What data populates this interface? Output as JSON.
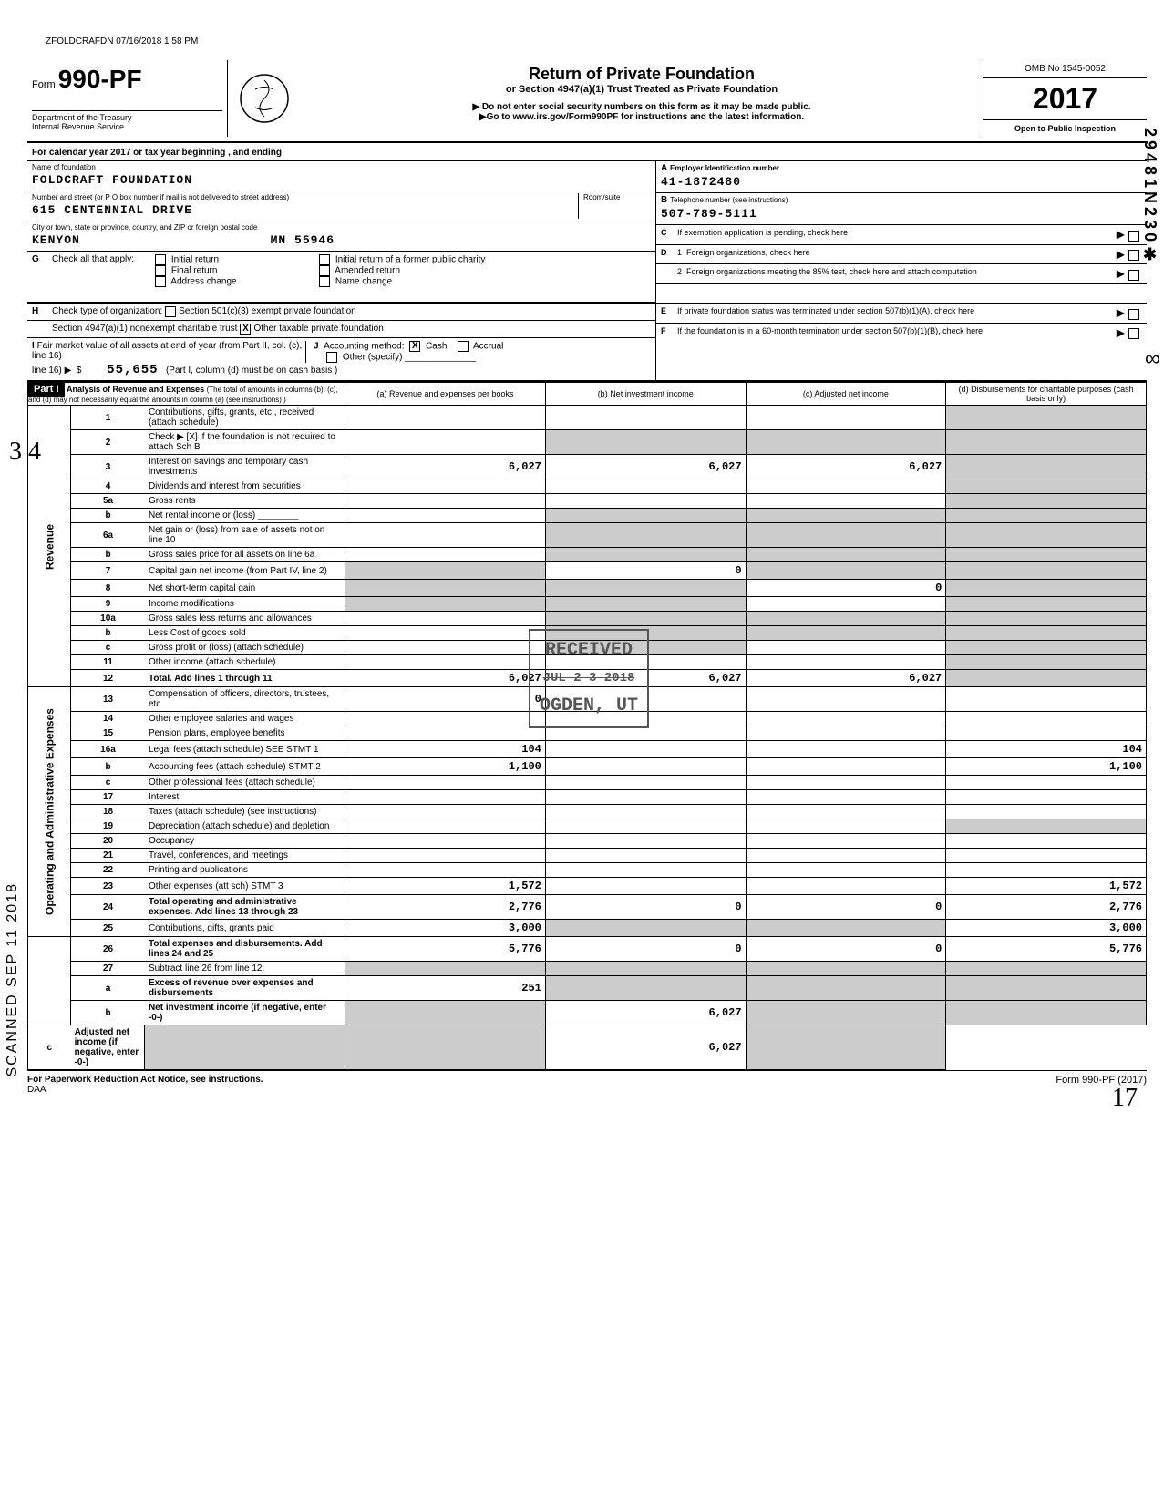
{
  "top_stamp": "ZFOLDCRAFDN 07/16/2018 1 58 PM",
  "form": {
    "prefix": "Form",
    "number": "990-PF",
    "dept1": "Department of the Treasury",
    "dept2": "Internal Revenue Service"
  },
  "title": {
    "main": "Return of Private Foundation",
    "sub": "or Section 4947(a)(1) Trust Treated as Private Foundation",
    "note1": "▶ Do not enter social security numbers on this form as it may be made public.",
    "note2": "▶Go to www.irs.gov/Form990PF for instructions and the latest information."
  },
  "omb": {
    "no": "OMB No 1545-0052",
    "year": "2017",
    "inspection": "Open to Public Inspection"
  },
  "calendar_row": "For calendar year 2017 or tax year beginning                         , and ending",
  "foundation": {
    "name_label": "Name of foundation",
    "name": "FOLDCRAFT FOUNDATION",
    "street_label": "Number and street (or P O  box number if mail is not delivered to street address)",
    "room_label": "Room/suite",
    "street": "615 CENTENNIAL DRIVE",
    "city_label": "City or town, state or province, country, and ZIP or foreign postal code",
    "city": "KENYON",
    "state_zip": "MN  55946"
  },
  "right_info": {
    "a_label": "Employer Identification number",
    "a_value": "41-1872480",
    "b_label": "Telephone number (see instructions)",
    "b_value": "507-789-5111",
    "c_label": "If exemption application is pending, check here",
    "d1_label": "Foreign organizations, check here",
    "d2_label": "Foreign organizations meeting the 85% test, check here and attach computation",
    "e_label": "If private foundation status was terminated under section 507(b)(1)(A), check here",
    "f_label": "If the foundation is in a 60-month termination under section 507(b)(1)(B), check here"
  },
  "section_g": {
    "prefix": "G",
    "label": "Check all that apply:",
    "opts": [
      "Initial return",
      "Final return",
      "Address change",
      "Initial return of a former public charity",
      "Amended return",
      "Name change"
    ]
  },
  "section_h": {
    "prefix": "H",
    "label": "Check type of organization:",
    "opt1": "Section 501(c)(3) exempt private foundation",
    "opt2": "Section 4947(a)(1) nonexempt charitable trust",
    "opt3": "Other taxable private foundation"
  },
  "section_i": {
    "prefix": "I",
    "label": "Fair market value of all assets at end of year (from Part II, col. (c), line 16)",
    "value": "55,655",
    "j_label": "Accounting method:",
    "j_cash": "Cash",
    "j_accrual": "Accrual",
    "j_other": "Other (specify)",
    "j_note": "(Part I, column (d) must be on cash basis )"
  },
  "part1": {
    "header_label": "Part I",
    "header_title": "Analysis of Revenue and Expenses",
    "header_sub": "(The total of amounts in columns (b), (c), and (d) may not necessarily equal the amounts in column (a) (see instructions) )",
    "col_a": "(a) Revenue and expenses per books",
    "col_b": "(b) Net investment income",
    "col_c": "(c) Adjusted net income",
    "col_d": "(d) Disbursements for charitable purposes (cash basis only)"
  },
  "rows": [
    {
      "ln": "1",
      "desc": "Contributions, gifts, grants, etc , received (attach schedule)",
      "a": "",
      "b": "",
      "c": "",
      "d": "",
      "d_shaded": true
    },
    {
      "ln": "2",
      "desc": "Check ▶  [X]  if the foundation is not required to attach Sch B",
      "a": "",
      "b": "",
      "c": "",
      "d": "",
      "d_shaded": true,
      "all_shaded_bcd": true
    },
    {
      "ln": "3",
      "desc": "Interest on savings and temporary cash investments",
      "a": "6,027",
      "b": "6,027",
      "c": "6,027",
      "d": "",
      "d_shaded": true
    },
    {
      "ln": "4",
      "desc": "Dividends and interest from securities",
      "a": "",
      "b": "",
      "c": "",
      "d": "",
      "d_shaded": true
    },
    {
      "ln": "5a",
      "desc": "Gross rents",
      "a": "",
      "b": "",
      "c": "",
      "d": "",
      "d_shaded": true
    },
    {
      "ln": "b",
      "desc": "Net rental income or (loss) ________",
      "a": "",
      "b": "",
      "c": "",
      "d": "",
      "d_shaded": true,
      "bcd_shaded": true
    },
    {
      "ln": "6a",
      "desc": "Net gain or (loss) from sale of assets not on line 10",
      "a": "",
      "b": "",
      "c": "",
      "d": "",
      "d_shaded": true,
      "bc_shaded": true
    },
    {
      "ln": "b",
      "desc": "Gross sales price for all assets on line 6a",
      "a": "",
      "b": "",
      "c": "",
      "d": "",
      "d_shaded": true,
      "bcd_shaded": true
    },
    {
      "ln": "7",
      "desc": "Capital gain net income (from Part IV, line 2)",
      "a": "",
      "b": "0",
      "c": "",
      "d": "",
      "d_shaded": true,
      "a_shaded": true,
      "c_shaded": true
    },
    {
      "ln": "8",
      "desc": "Net short-term capital gain",
      "a": "",
      "b": "",
      "c": "0",
      "d": "",
      "d_shaded": true,
      "a_shaded": true,
      "b_shaded": true
    },
    {
      "ln": "9",
      "desc": "Income modifications",
      "a": "",
      "b": "",
      "c": "",
      "d": "",
      "d_shaded": true,
      "a_shaded": true,
      "b_shaded": true
    },
    {
      "ln": "10a",
      "desc": "Gross sales less returns and allowances",
      "a": "",
      "b": "",
      "c": "",
      "d": "",
      "d_shaded": true,
      "bcd_shaded": true
    },
    {
      "ln": "b",
      "desc": "Less  Cost of goods sold",
      "a": "",
      "b": "",
      "c": "",
      "d": "",
      "d_shaded": true,
      "bcd_shaded": true
    },
    {
      "ln": "c",
      "desc": "Gross profit or (loss) (attach schedule)",
      "a": "",
      "b": "",
      "c": "",
      "d": "",
      "d_shaded": true,
      "b_shaded": true
    },
    {
      "ln": "11",
      "desc": "Other income (attach schedule)",
      "a": "",
      "b": "",
      "c": "",
      "d": "",
      "d_shaded": true
    },
    {
      "ln": "12",
      "desc": "Total. Add lines 1 through 11",
      "a": "6,027",
      "b": "6,027",
      "c": "6,027",
      "d": "",
      "d_shaded": true,
      "bold": true
    },
    {
      "ln": "13",
      "desc": "Compensation of officers, directors, trustees, etc",
      "a": "0",
      "b": "",
      "c": "",
      "d": ""
    },
    {
      "ln": "14",
      "desc": "Other employee salaries and wages",
      "a": "",
      "b": "",
      "c": "",
      "d": ""
    },
    {
      "ln": "15",
      "desc": "Pension plans, employee benefits",
      "a": "",
      "b": "",
      "c": "",
      "d": ""
    },
    {
      "ln": "16a",
      "desc": "Legal fees (attach schedule) SEE  STMT  1",
      "a": "104",
      "b": "",
      "c": "",
      "d": "104"
    },
    {
      "ln": "b",
      "desc": "Accounting fees (attach schedule)   STMT  2",
      "a": "1,100",
      "b": "",
      "c": "",
      "d": "1,100"
    },
    {
      "ln": "c",
      "desc": "Other professional fees (attach schedule)",
      "a": "",
      "b": "",
      "c": "",
      "d": ""
    },
    {
      "ln": "17",
      "desc": "Interest",
      "a": "",
      "b": "",
      "c": "",
      "d": ""
    },
    {
      "ln": "18",
      "desc": "Taxes (attach schedule) (see instructions)",
      "a": "",
      "b": "",
      "c": "",
      "d": ""
    },
    {
      "ln": "19",
      "desc": "Depreciation (attach schedule) and depletion",
      "a": "",
      "b": "",
      "c": "",
      "d": "",
      "d_shaded": true
    },
    {
      "ln": "20",
      "desc": "Occupancy",
      "a": "",
      "b": "",
      "c": "",
      "d": ""
    },
    {
      "ln": "21",
      "desc": "Travel, conferences, and meetings",
      "a": "",
      "b": "",
      "c": "",
      "d": ""
    },
    {
      "ln": "22",
      "desc": "Printing and publications",
      "a": "",
      "b": "",
      "c": "",
      "d": ""
    },
    {
      "ln": "23",
      "desc": "Other expenses (att sch)                     STMT  3",
      "a": "1,572",
      "b": "",
      "c": "",
      "d": "1,572"
    },
    {
      "ln": "24",
      "desc": "Total operating and administrative expenses. Add lines 13 through 23",
      "a": "2,776",
      "b": "0",
      "c": "0",
      "d": "2,776",
      "bold": true
    },
    {
      "ln": "25",
      "desc": "Contributions, gifts, grants paid",
      "a": "3,000",
      "b": "",
      "c": "",
      "d": "3,000",
      "b_shaded": true,
      "c_shaded": true
    },
    {
      "ln": "26",
      "desc": "Total expenses and disbursements. Add lines 24 and 25",
      "a": "5,776",
      "b": "0",
      "c": "0",
      "d": "5,776",
      "bold": true
    },
    {
      "ln": "27",
      "desc": "Subtract line 26 from line 12:",
      "a": "",
      "b": "",
      "c": "",
      "d": "",
      "all_shaded": true
    },
    {
      "ln": "a",
      "desc": "Excess of revenue over expenses and disbursements",
      "a": "251",
      "b": "",
      "c": "",
      "d": "",
      "b_shaded": true,
      "c_shaded": true,
      "d_shaded": true,
      "bold": true
    },
    {
      "ln": "b",
      "desc": "Net investment income (if negative, enter -0-)",
      "a": "",
      "b": "6,027",
      "c": "",
      "d": "",
      "a_shaded": true,
      "c_shaded": true,
      "d_shaded": true,
      "bold": true
    },
    {
      "ln": "c",
      "desc": "Adjusted net income (if negative, enter -0-)",
      "a": "",
      "b": "",
      "c": "6,027",
      "d": "",
      "a_shaded": true,
      "b_shaded": true,
      "d_shaded": true,
      "bold": true
    }
  ],
  "vertical_labels": {
    "revenue": "Revenue",
    "expenses": "Operating and Administrative Expenses"
  },
  "stamp": {
    "line1": "RECEIVED",
    "line2": "JUL 2 3 2018",
    "line3": "OGDEN, UT"
  },
  "footer": {
    "left": "For Paperwork Reduction Act Notice, see instructions.",
    "mid": "DAA",
    "right": "Form 990-PF (2017)"
  },
  "margin": {
    "three_four": "3\n4",
    "scanned": "SCANNED  SEP 11 2018",
    "side_number": "29481N230✱",
    "corner": "17"
  }
}
